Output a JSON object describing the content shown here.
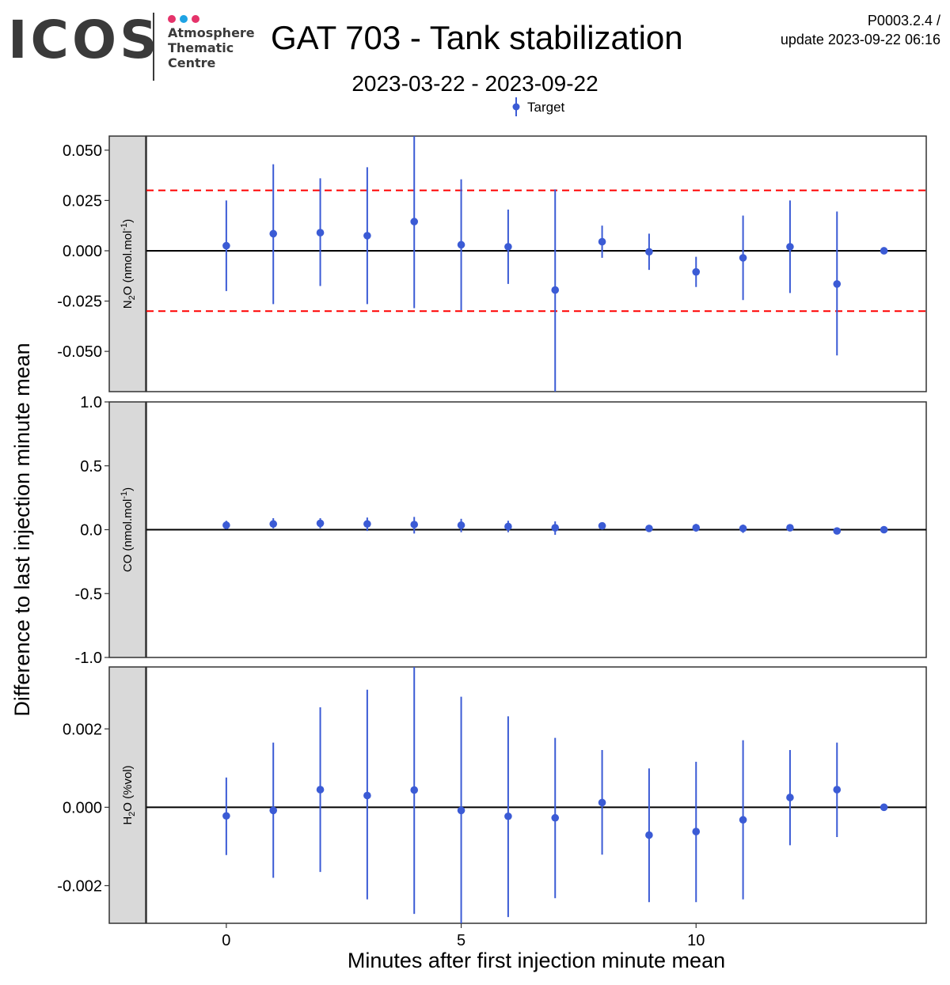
{
  "header": {
    "logo": {
      "word": "ICOS",
      "lines": [
        "Atmosphere",
        "Thematic",
        "Centre"
      ],
      "dot_colors": [
        "#e5336a",
        "#1fa3e4",
        "#e5336a"
      ]
    },
    "title": "GAT 703 - Tank stabilization",
    "subtitle": "2023-03-22 - 2023-09-22",
    "version_line1": "P0003.2.4 /",
    "version_line2": "update  2023-09-22 06:16"
  },
  "colors": {
    "series": "#3b5bd5",
    "threshold": "#ff0000",
    "strip_bg": "#d9d9d9"
  },
  "chart_data": {
    "type": "scatter",
    "legend": {
      "label": "Target",
      "position": "top"
    },
    "xlabel": "Minutes after first injection minute mean",
    "ylabel": "Difference to last injection minute mean",
    "xlim": [
      -1.7,
      14.9
    ],
    "x_ticks": [
      0,
      5,
      10
    ],
    "x_tick_labels": [
      "0",
      "5",
      "10"
    ],
    "x": [
      0,
      1,
      2,
      3,
      4,
      5,
      6,
      7,
      8,
      9,
      10,
      11,
      12,
      13,
      14
    ],
    "panels": [
      {
        "strip_main": "N",
        "strip_sub": "2",
        "strip_rest": "O (nmol.mol",
        "strip_sup": "-1",
        "strip_end": ")",
        "ylim": [
          -0.07,
          0.057
        ],
        "y_ticks": [
          -0.05,
          -0.025,
          0,
          0.025,
          0.05
        ],
        "y_tick_labels": [
          "-0.050",
          "-0.025",
          "0.000",
          "0.025",
          "0.050"
        ],
        "thresholds": [
          0.03,
          -0.03
        ],
        "y": [
          0.0025,
          0.0085,
          0.009,
          0.0075,
          0.0145,
          0.003,
          0.002,
          -0.0195,
          0.0045,
          -0.0005,
          -0.0105,
          -0.0035,
          0.002,
          -0.0165,
          0.0
        ],
        "ymin": [
          -0.02,
          -0.0265,
          -0.0175,
          -0.0265,
          -0.0285,
          -0.0295,
          -0.0165,
          -0.07,
          -0.0035,
          -0.0095,
          -0.018,
          -0.0245,
          -0.021,
          -0.052,
          0.0
        ],
        "ymax": [
          0.025,
          0.043,
          0.036,
          0.0415,
          0.057,
          0.0355,
          0.0205,
          0.0305,
          0.0125,
          0.0085,
          -0.003,
          0.0175,
          0.025,
          0.0195,
          0.0
        ]
      },
      {
        "strip_main": "CO (nmol.mol",
        "strip_sub": "",
        "strip_rest": "",
        "strip_sup": "-1",
        "strip_end": ")",
        "ylim": [
          -1.0,
          1.0
        ],
        "y_ticks": [
          -1.0,
          -0.5,
          0,
          0.5,
          1.0
        ],
        "y_tick_labels": [
          "-1.0",
          "-0.5",
          "0.0",
          "0.5",
          "1.0"
        ],
        "thresholds": [],
        "y": [
          0.035,
          0.045,
          0.05,
          0.045,
          0.04,
          0.035,
          0.025,
          0.015,
          0.03,
          0.01,
          0.015,
          0.01,
          0.015,
          -0.01,
          0.0
        ],
        "ymin": [
          0.005,
          0.01,
          0.01,
          -0.01,
          -0.03,
          -0.02,
          -0.02,
          -0.04,
          0.015,
          0.0,
          -0.015,
          -0.025,
          0.0,
          -0.02,
          0.0
        ],
        "ymax": [
          0.07,
          0.09,
          0.09,
          0.095,
          0.1,
          0.085,
          0.07,
          0.065,
          0.05,
          0.02,
          0.045,
          0.04,
          0.03,
          0.0,
          0.0
        ]
      },
      {
        "strip_main": "H",
        "strip_sub": "2",
        "strip_rest": "O (%vol)",
        "strip_sup": "",
        "strip_end": "",
        "ylim": [
          -0.00296,
          0.00358
        ],
        "y_ticks": [
          -0.002,
          0,
          0.002
        ],
        "y_tick_labels": [
          "-0.002",
          "0.000",
          "0.002"
        ],
        "thresholds": [],
        "y": [
          -0.00022,
          -8e-05,
          0.00045,
          0.0003,
          0.00044,
          -8e-05,
          -0.00023,
          -0.00027,
          0.00012,
          -0.00071,
          -0.00062,
          -0.00032,
          0.00025,
          0.00045,
          0.0
        ],
        "ymin": [
          -0.00122,
          -0.0018,
          -0.00165,
          -0.00235,
          -0.00272,
          -0.00296,
          -0.0028,
          -0.00232,
          -0.00121,
          -0.00242,
          -0.00242,
          -0.00235,
          -0.00097,
          -0.00076,
          0.0
        ],
        "ymax": [
          0.00076,
          0.00165,
          0.00255,
          0.003,
          0.00358,
          0.00282,
          0.00232,
          0.00177,
          0.00146,
          0.00099,
          0.00116,
          0.00171,
          0.00146,
          0.00165,
          0.0
        ]
      }
    ]
  }
}
